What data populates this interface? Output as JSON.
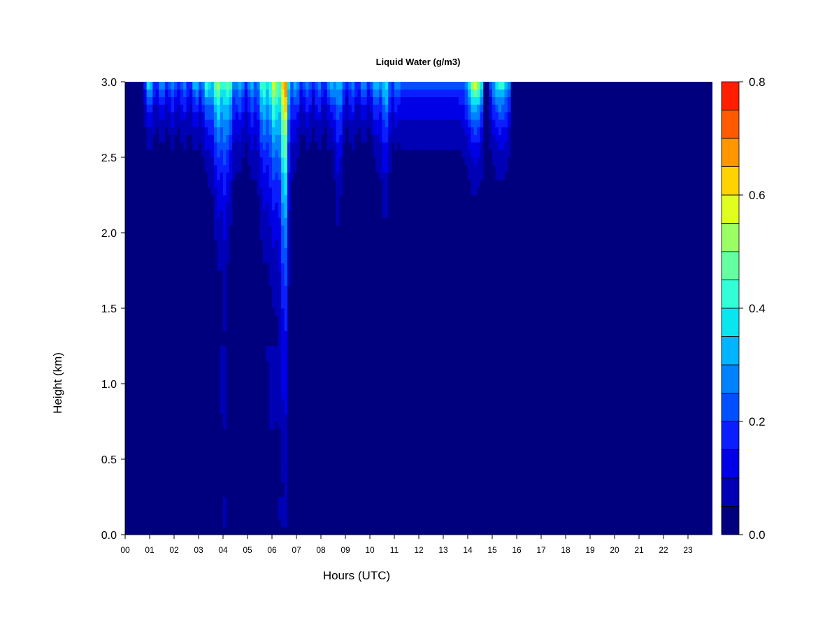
{
  "chart_data": {
    "type": "heatmap",
    "title": "Liquid Water (g/m3)",
    "xlabel": "Hours (UTC)",
    "ylabel": "Height (km)",
    "xlim": [
      0,
      24
    ],
    "ylim": [
      0,
      3
    ],
    "x_ticks": [
      "00",
      "01",
      "02",
      "03",
      "04",
      "05",
      "06",
      "07",
      "08",
      "09",
      "10",
      "11",
      "12",
      "13",
      "14",
      "15",
      "16",
      "17",
      "18",
      "19",
      "20",
      "21",
      "22",
      "23"
    ],
    "y_ticks": [
      "0.0",
      "0.5",
      "1.0",
      "1.5",
      "2.0",
      "2.5",
      "3.0"
    ],
    "colorbar": {
      "range": [
        0,
        0.8
      ],
      "step": 0.05,
      "tick_labels": [
        "0.0",
        "0.2",
        "0.4",
        "0.6",
        "0.8"
      ],
      "colors": [
        "#00007F",
        "#0000B4",
        "#0000E6",
        "#0A1EFF",
        "#0050FF",
        "#0082FF",
        "#00B4FF",
        "#0AE6F0",
        "#32FFD7",
        "#64FFA0",
        "#9BFF64",
        "#E1FF1E",
        "#FFD200",
        "#FF9600",
        "#FF5A00",
        "#FF1E00",
        "#D20000",
        "#820000"
      ]
    },
    "grid": false,
    "legend": "colorbar-right"
  }
}
